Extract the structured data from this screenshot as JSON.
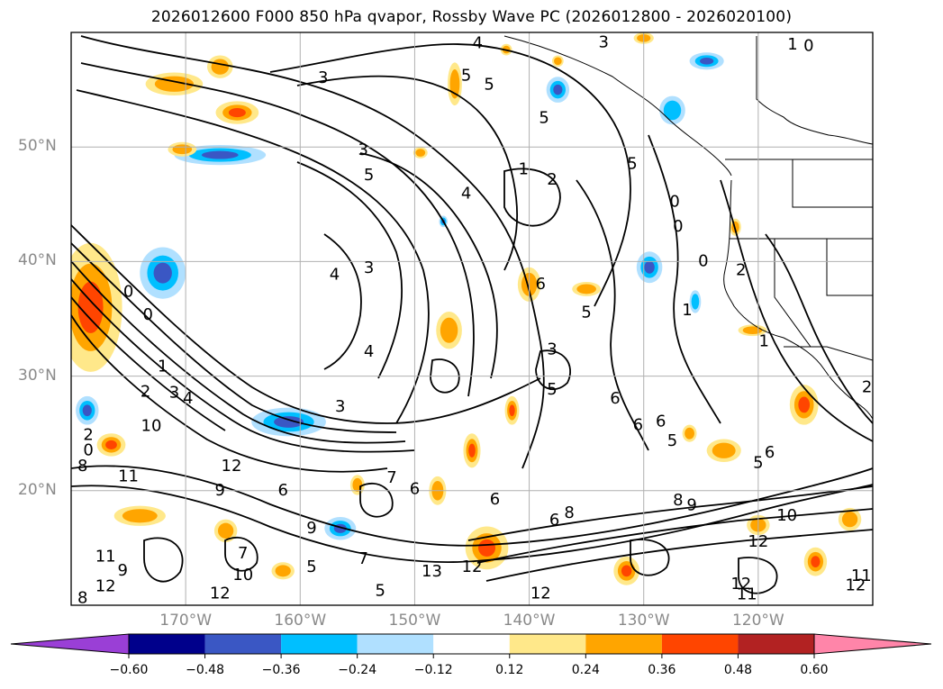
{
  "title": "2026012600 F000 850 hPa qvapor, Rossby Wave PC (2026012800 - 2026020100)",
  "map": {
    "lon_range": [
      -180,
      -110
    ],
    "lat_range": [
      10,
      60
    ],
    "lat_ticks": [
      {
        "label": "50°N",
        "lat": 50
      },
      {
        "label": "40°N",
        "lat": 40
      },
      {
        "label": "30°N",
        "lat": 30
      },
      {
        "label": "20°N",
        "lat": 20
      }
    ],
    "lon_ticks": [
      {
        "label": "170°W",
        "lon": -170
      },
      {
        "label": "160°W",
        "lon": -160
      },
      {
        "label": "150°W",
        "lon": -150
      },
      {
        "label": "140°W",
        "lon": -140
      },
      {
        "label": "130°W",
        "lon": -130
      },
      {
        "label": "120°W",
        "lon": -120
      }
    ],
    "gridline_color": "#b0b0b0",
    "coastline_color": "#000000",
    "contour_color": "#000000",
    "contour_labels": [
      {
        "text": "3",
        "lon": -158.0,
        "lat": 56.0
      },
      {
        "text": "5",
        "lon": -145.5,
        "lat": 56.2
      },
      {
        "text": "4",
        "lon": -144.5,
        "lat": 59.0
      },
      {
        "text": "3",
        "lon": -133.5,
        "lat": 59.1
      },
      {
        "text": "1",
        "lon": -117.0,
        "lat": 58.9
      },
      {
        "text": "0",
        "lon": -115.6,
        "lat": 58.8
      },
      {
        "text": "5",
        "lon": -143.5,
        "lat": 55.4
      },
      {
        "text": "5",
        "lon": -138.7,
        "lat": 52.5
      },
      {
        "text": "3",
        "lon": -154.5,
        "lat": 49.7
      },
      {
        "text": "5",
        "lon": -154.0,
        "lat": 47.5
      },
      {
        "text": "4",
        "lon": -145.5,
        "lat": 45.9
      },
      {
        "text": "1",
        "lon": -140.5,
        "lat": 48.0
      },
      {
        "text": "2",
        "lon": -138.0,
        "lat": 47.1
      },
      {
        "text": "5",
        "lon": -131.0,
        "lat": 48.5
      },
      {
        "text": "0",
        "lon": -127.3,
        "lat": 45.2
      },
      {
        "text": "0",
        "lon": -127.0,
        "lat": 43.0
      },
      {
        "text": "0",
        "lon": -124.8,
        "lat": 40.0
      },
      {
        "text": "2",
        "lon": -121.5,
        "lat": 39.2
      },
      {
        "text": "1",
        "lon": -126.2,
        "lat": 35.7
      },
      {
        "text": "4",
        "lon": -157.0,
        "lat": 38.8
      },
      {
        "text": "3",
        "lon": -154.0,
        "lat": 39.4
      },
      {
        "text": "0",
        "lon": -175.0,
        "lat": 37.3
      },
      {
        "text": "0",
        "lon": -173.3,
        "lat": 35.3
      },
      {
        "text": "4",
        "lon": -154.0,
        "lat": 32.1
      },
      {
        "text": "1",
        "lon": -172.0,
        "lat": 30.8
      },
      {
        "text": "2",
        "lon": -173.5,
        "lat": 28.6
      },
      {
        "text": "3",
        "lon": -171.0,
        "lat": 28.5
      },
      {
        "text": "4",
        "lon": -169.8,
        "lat": 28.0
      },
      {
        "text": "3",
        "lon": -156.5,
        "lat": 27.3
      },
      {
        "text": "3",
        "lon": -138.0,
        "lat": 32.3
      },
      {
        "text": "5",
        "lon": -138.0,
        "lat": 28.8
      },
      {
        "text": "5",
        "lon": -135.0,
        "lat": 35.5
      },
      {
        "text": "6",
        "lon": -139.0,
        "lat": 38.0
      },
      {
        "text": "1",
        "lon": -119.5,
        "lat": 33.0
      },
      {
        "text": "10",
        "lon": -173.0,
        "lat": 25.6
      },
      {
        "text": "2",
        "lon": -178.5,
        "lat": 24.8
      },
      {
        "text": "0",
        "lon": -178.5,
        "lat": 23.5
      },
      {
        "text": "8",
        "lon": -179.0,
        "lat": 22.1
      },
      {
        "text": "11",
        "lon": -175.0,
        "lat": 21.2
      },
      {
        "text": "12",
        "lon": -166.0,
        "lat": 22.1
      },
      {
        "text": "9",
        "lon": -167.0,
        "lat": 20.0
      },
      {
        "text": "7",
        "lon": -152.0,
        "lat": 21.1
      },
      {
        "text": "6",
        "lon": -150.0,
        "lat": 20.1
      },
      {
        "text": "6",
        "lon": -143.0,
        "lat": 19.2
      },
      {
        "text": "6",
        "lon": -132.5,
        "lat": 28.0
      },
      {
        "text": "6",
        "lon": -130.5,
        "lat": 25.7
      },
      {
        "text": "5",
        "lon": -127.5,
        "lat": 24.3
      },
      {
        "text": "5",
        "lon": -120.0,
        "lat": 22.4
      },
      {
        "text": "6",
        "lon": -119.0,
        "lat": 23.3
      },
      {
        "text": "6",
        "lon": -128.5,
        "lat": 26.0
      },
      {
        "text": "2",
        "lon": -110.5,
        "lat": 29.0
      },
      {
        "text": "8",
        "lon": -127.0,
        "lat": 19.1
      },
      {
        "text": "9",
        "lon": -125.8,
        "lat": 18.7
      },
      {
        "text": "10",
        "lon": -117.5,
        "lat": 17.8
      },
      {
        "text": "12",
        "lon": -120.0,
        "lat": 15.5
      },
      {
        "text": "6",
        "lon": -137.8,
        "lat": 17.4
      },
      {
        "text": "9",
        "lon": -159.0,
        "lat": 16.7
      },
      {
        "text": "7",
        "lon": -165.0,
        "lat": 14.5
      },
      {
        "text": "5",
        "lon": -159.0,
        "lat": 13.3
      },
      {
        "text": "12",
        "lon": -145.0,
        "lat": 13.3
      },
      {
        "text": "13",
        "lon": -148.5,
        "lat": 12.9
      },
      {
        "text": "5",
        "lon": -153.0,
        "lat": 11.2
      },
      {
        "text": "10",
        "lon": -165.0,
        "lat": 12.6
      },
      {
        "text": "12",
        "lon": -167.0,
        "lat": 11.0
      },
      {
        "text": "12",
        "lon": -177.0,
        "lat": 11.6
      },
      {
        "text": "8",
        "lon": -179.0,
        "lat": 10.6
      },
      {
        "text": "11",
        "lon": -177.0,
        "lat": 14.2
      },
      {
        "text": "9",
        "lon": -175.5,
        "lat": 13.0
      },
      {
        "text": "12",
        "lon": -139.0,
        "lat": 11.0
      },
      {
        "text": "12",
        "lon": -121.5,
        "lat": 11.8
      },
      {
        "text": "11",
        "lon": -121.0,
        "lat": 10.9
      },
      {
        "text": "12",
        "lon": -111.5,
        "lat": 11.7
      },
      {
        "text": "11",
        "lon": -111.0,
        "lat": 12.5
      },
      {
        "text": "6",
        "lon": -161.5,
        "lat": 20.0
      },
      {
        "text": "7",
        "lon": -154.5,
        "lat": 14.0
      },
      {
        "text": "8",
        "lon": -136.5,
        "lat": 18.0
      }
    ],
    "shading_blobs": [
      {
        "lon": -178.3,
        "lat": 36.0,
        "rx": 2.2,
        "ry": 4.5,
        "level": 0.48
      },
      {
        "lon": -167.0,
        "lat": 49.3,
        "rx": 3.2,
        "ry": 0.7,
        "level": -0.48
      },
      {
        "lon": -172.0,
        "lat": 39.0,
        "rx": 1.6,
        "ry": 1.8,
        "level": -0.36
      },
      {
        "lon": -161.0,
        "lat": 26.0,
        "rx": 2.6,
        "ry": 1.0,
        "level": -0.36
      },
      {
        "lon": -165.5,
        "lat": 53.0,
        "rx": 1.5,
        "ry": 0.8,
        "level": 0.36
      },
      {
        "lon": -171.0,
        "lat": 55.5,
        "rx": 2.0,
        "ry": 0.8,
        "level": 0.24
      },
      {
        "lon": -167.0,
        "lat": 57.0,
        "rx": 0.9,
        "ry": 0.8,
        "level": 0.24
      },
      {
        "lon": -170.3,
        "lat": 49.8,
        "rx": 1.0,
        "ry": 0.5,
        "level": 0.24
      },
      {
        "lon": -178.6,
        "lat": 27.0,
        "rx": 0.8,
        "ry": 1.0,
        "level": -0.36
      },
      {
        "lon": -176.5,
        "lat": 24.0,
        "rx": 1.0,
        "ry": 0.8,
        "level": 0.36
      },
      {
        "lon": -174.0,
        "lat": 17.8,
        "rx": 1.8,
        "ry": 0.7,
        "level": 0.24
      },
      {
        "lon": -156.5,
        "lat": 16.7,
        "rx": 1.1,
        "ry": 0.8,
        "level": -0.36
      },
      {
        "lon": -143.7,
        "lat": 15.0,
        "rx": 1.5,
        "ry": 1.5,
        "level": 0.36
      },
      {
        "lon": -147.0,
        "lat": 34.0,
        "rx": 0.9,
        "ry": 1.3,
        "level": 0.24
      },
      {
        "lon": -140.0,
        "lat": 38.0,
        "rx": 0.8,
        "ry": 1.2,
        "level": 0.24
      },
      {
        "lon": -129.5,
        "lat": 39.5,
        "rx": 0.9,
        "ry": 1.1,
        "level": -0.36
      },
      {
        "lon": -137.5,
        "lat": 55.0,
        "rx": 0.8,
        "ry": 0.9,
        "level": -0.36
      },
      {
        "lon": -124.5,
        "lat": 57.5,
        "rx": 1.2,
        "ry": 0.6,
        "level": -0.36
      },
      {
        "lon": -127.5,
        "lat": 53.2,
        "rx": 0.9,
        "ry": 1.0,
        "level": -0.24
      },
      {
        "lon": -146.5,
        "lat": 55.5,
        "rx": 0.5,
        "ry": 1.5,
        "level": 0.24
      },
      {
        "lon": -145.0,
        "lat": 23.5,
        "rx": 0.6,
        "ry": 1.2,
        "level": 0.36
      },
      {
        "lon": -141.5,
        "lat": 27.0,
        "rx": 0.5,
        "ry": 1.0,
        "level": 0.36
      },
      {
        "lon": -116.0,
        "lat": 27.5,
        "rx": 1.0,
        "ry": 1.4,
        "level": 0.36
      },
      {
        "lon": -123.0,
        "lat": 23.5,
        "rx": 1.2,
        "ry": 0.8,
        "level": 0.24
      },
      {
        "lon": -115.0,
        "lat": 13.8,
        "rx": 0.8,
        "ry": 1.0,
        "level": 0.36
      },
      {
        "lon": -112.0,
        "lat": 17.5,
        "rx": 0.8,
        "ry": 0.8,
        "level": 0.24
      },
      {
        "lon": -131.5,
        "lat": 13.0,
        "rx": 0.9,
        "ry": 1.0,
        "level": 0.36
      },
      {
        "lon": -161.5,
        "lat": 13.0,
        "rx": 0.8,
        "ry": 0.6,
        "level": 0.24
      },
      {
        "lon": -148.0,
        "lat": 20.0,
        "rx": 0.6,
        "ry": 1.0,
        "level": 0.24
      },
      {
        "lon": -166.5,
        "lat": 16.5,
        "rx": 0.8,
        "ry": 0.8,
        "level": 0.24
      },
      {
        "lon": -155.0,
        "lat": 20.5,
        "rx": 0.5,
        "ry": 0.7,
        "level": 0.24
      },
      {
        "lon": -120.0,
        "lat": 17.0,
        "rx": 0.8,
        "ry": 0.7,
        "level": 0.24
      },
      {
        "lon": -137.5,
        "lat": 57.5,
        "rx": 0.4,
        "ry": 0.4,
        "level": 0.24
      },
      {
        "lon": -149.5,
        "lat": 49.5,
        "rx": 0.5,
        "ry": 0.4,
        "level": 0.24
      },
      {
        "lon": -122.0,
        "lat": 43.0,
        "rx": 0.4,
        "ry": 0.6,
        "level": 0.24
      },
      {
        "lon": -130.0,
        "lat": 59.5,
        "rx": 0.7,
        "ry": 0.4,
        "level": 0.24
      },
      {
        "lon": -142.0,
        "lat": 58.5,
        "rx": 0.4,
        "ry": 0.4,
        "level": 0.24
      },
      {
        "lon": -135.0,
        "lat": 37.6,
        "rx": 1.0,
        "ry": 0.5,
        "level": 0.24
      },
      {
        "lon": -125.5,
        "lat": 36.5,
        "rx": 0.4,
        "ry": 0.8,
        "level": -0.24
      },
      {
        "lon": -147.5,
        "lat": 43.5,
        "rx": 0.3,
        "ry": 0.4,
        "level": -0.36
      },
      {
        "lon": -120.5,
        "lat": 34.0,
        "rx": 1.0,
        "ry": 0.4,
        "level": 0.24
      },
      {
        "lon": -126.0,
        "lat": 25.0,
        "rx": 0.5,
        "ry": 0.6,
        "level": 0.24
      }
    ]
  },
  "colorbar": {
    "colors": [
      "#9a3fd6",
      "#00008b",
      "#3a57c4",
      "#00bfff",
      "#b0e0ff",
      "#ffffff",
      "#ffe88a",
      "#ffa500",
      "#ff4500",
      "#b22222",
      "#ff85a9"
    ],
    "tick_labels": [
      "−0.60",
      "−0.48",
      "−0.36",
      "−0.24",
      "−0.12",
      "0.12",
      "0.24",
      "0.36",
      "0.48",
      "0.60"
    ],
    "extend": "both"
  }
}
